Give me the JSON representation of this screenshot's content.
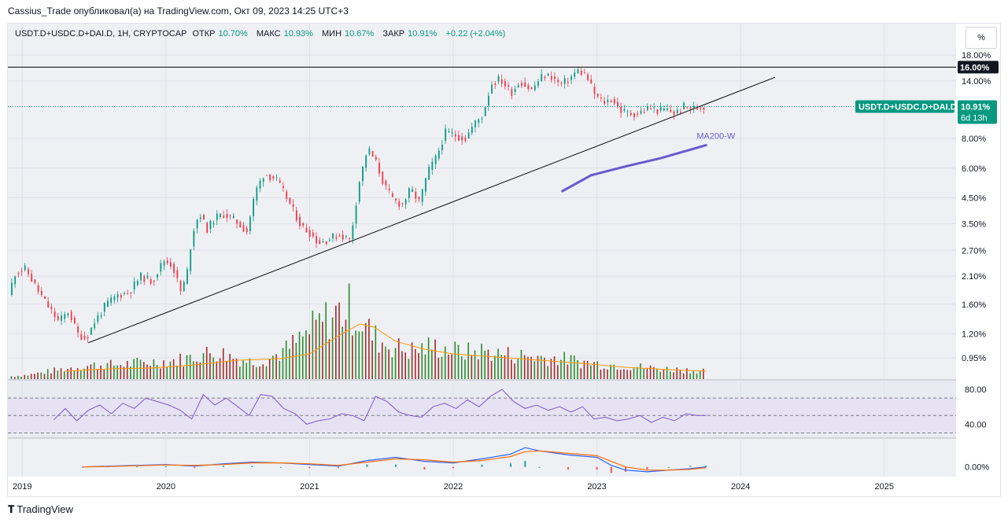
{
  "attribution": "Cassius_Trade опубликовал(а) на TradingView.com, Окт 09, 2023 14:25 UTC+3",
  "header": {
    "symbol": "USDT.D+USDC.D+DAI.D, 1H, CRYPTOCAP",
    "open_label": "ОТКР",
    "open_value": "10.70%",
    "high_label": "МАКС",
    "high_value": "10.93%",
    "low_label": "МИН",
    "low_value": "10.67%",
    "close_label": "ЗАКР",
    "close_value": "10.91%",
    "change": "+0.22 (+2.04%)"
  },
  "scale_button": "%",
  "price_tag": {
    "label": "USDT.D+USDC.D+DAI.D",
    "value": "10.91%",
    "countdown": "6d 13h"
  },
  "level_tag": "16.00%",
  "annotation_ma": "MA200-W",
  "footer_logo": "TradingView",
  "colors": {
    "up": "#089981",
    "down": "#f23645",
    "vol_up": "#2e8b2e",
    "vol_down": "#a52a2a",
    "ma": "#6a5acd",
    "rsi": "#7e57c2",
    "macd": "#2962ff",
    "signal": "#ff6d00",
    "vol_ma": "#ff9800"
  },
  "chart_data": [
    {
      "type": "candlestick",
      "title": "USDT.D+USDC.D+DAI.D, 1H, CRYPTOCAP",
      "y_scale": "log",
      "y_ticks": [
        "18.00%",
        "14.00%",
        "8.00%",
        "6.00%",
        "4.50%",
        "3.50%",
        "2.70%",
        "2.10%",
        "1.60%",
        "1.20%",
        "0.95%"
      ],
      "x_ticks": [
        "2019",
        "2020",
        "2021",
        "2022",
        "2023",
        "2024",
        "2025"
      ],
      "x_range": [
        2018.9,
        2025.5
      ],
      "price_series": [
        [
          2018.92,
          1.75
        ],
        [
          2018.97,
          2.2
        ],
        [
          2019.04,
          2.25
        ],
        [
          2019.12,
          1.85
        ],
        [
          2019.2,
          1.55
        ],
        [
          2019.27,
          1.35
        ],
        [
          2019.34,
          1.5
        ],
        [
          2019.4,
          1.2
        ],
        [
          2019.46,
          1.15
        ],
        [
          2019.52,
          1.35
        ],
        [
          2019.6,
          1.6
        ],
        [
          2019.68,
          1.75
        ],
        [
          2019.76,
          1.8
        ],
        [
          2019.84,
          2.1
        ],
        [
          2019.92,
          2.0
        ],
        [
          2020.0,
          2.45
        ],
        [
          2020.06,
          2.35
        ],
        [
          2020.12,
          1.8
        ],
        [
          2020.16,
          2.1
        ],
        [
          2020.2,
          3.2
        ],
        [
          2020.25,
          3.9
        ],
        [
          2020.3,
          3.3
        ],
        [
          2020.36,
          3.7
        ],
        [
          2020.42,
          3.85
        ],
        [
          2020.5,
          3.6
        ],
        [
          2020.58,
          3.25
        ],
        [
          2020.64,
          4.8
        ],
        [
          2020.7,
          5.7
        ],
        [
          2020.78,
          5.4
        ],
        [
          2020.84,
          4.7
        ],
        [
          2020.9,
          4.0
        ],
        [
          2020.96,
          3.4
        ],
        [
          2021.02,
          3.2
        ],
        [
          2021.08,
          2.9
        ],
        [
          2021.14,
          3.0
        ],
        [
          2021.22,
          3.15
        ],
        [
          2021.3,
          3.0
        ],
        [
          2021.36,
          5.2
        ],
        [
          2021.42,
          7.3
        ],
        [
          2021.48,
          6.3
        ],
        [
          2021.54,
          5.0
        ],
        [
          2021.6,
          4.4
        ],
        [
          2021.66,
          4.2
        ],
        [
          2021.72,
          4.9
        ],
        [
          2021.78,
          4.3
        ],
        [
          2021.84,
          5.8
        ],
        [
          2021.9,
          6.7
        ],
        [
          2021.96,
          8.5
        ],
        [
          2022.02,
          8.3
        ],
        [
          2022.1,
          8.0
        ],
        [
          2022.16,
          9.2
        ],
        [
          2022.22,
          10.0
        ],
        [
          2022.28,
          13.6
        ],
        [
          2022.34,
          14.3
        ],
        [
          2022.42,
          12.5
        ],
        [
          2022.48,
          14.0
        ],
        [
          2022.56,
          12.8
        ],
        [
          2022.64,
          14.8
        ],
        [
          2022.7,
          14.6
        ],
        [
          2022.76,
          13.5
        ],
        [
          2022.82,
          14.2
        ],
        [
          2022.88,
          15.5
        ],
        [
          2022.94,
          14.8
        ],
        [
          2023.0,
          12.3
        ],
        [
          2023.06,
          11.3
        ],
        [
          2023.12,
          11.8
        ],
        [
          2023.18,
          10.5
        ],
        [
          2023.24,
          10.2
        ],
        [
          2023.3,
          10.2
        ],
        [
          2023.38,
          10.8
        ],
        [
          2023.44,
          10.5
        ],
        [
          2023.5,
          10.6
        ],
        [
          2023.56,
          10.2
        ],
        [
          2023.62,
          10.9
        ],
        [
          2023.7,
          10.7
        ],
        [
          2023.76,
          10.91
        ]
      ],
      "horizontal_level": 16.0,
      "last_price": 10.91,
      "trendline": [
        [
          2019.46,
          1.1
        ],
        [
          2024.24,
          14.5
        ]
      ],
      "ma200w": [
        [
          2022.76,
          4.8
        ],
        [
          2022.96,
          5.6
        ],
        [
          2023.2,
          6.1
        ],
        [
          2023.44,
          6.6
        ],
        [
          2023.76,
          7.5
        ]
      ],
      "volume": [
        [
          2018.92,
          4
        ],
        [
          2019.04,
          6
        ],
        [
          2019.16,
          10
        ],
        [
          2019.28,
          14
        ],
        [
          2019.4,
          18
        ],
        [
          2019.52,
          20
        ],
        [
          2019.64,
          20
        ],
        [
          2019.76,
          22
        ],
        [
          2019.88,
          24
        ],
        [
          2020.0,
          25
        ],
        [
          2020.12,
          28
        ],
        [
          2020.24,
          35
        ],
        [
          2020.36,
          38
        ],
        [
          2020.48,
          30
        ],
        [
          2020.6,
          24
        ],
        [
          2020.72,
          30
        ],
        [
          2020.84,
          42
        ],
        [
          2020.96,
          60
        ],
        [
          2021.04,
          75
        ],
        [
          2021.12,
          85
        ],
        [
          2021.2,
          95
        ],
        [
          2021.28,
          100
        ],
        [
          2021.36,
          80
        ],
        [
          2021.44,
          60
        ],
        [
          2021.52,
          50
        ],
        [
          2021.6,
          45
        ],
        [
          2021.68,
          40
        ],
        [
          2021.76,
          42
        ],
        [
          2021.84,
          46
        ],
        [
          2021.92,
          44
        ],
        [
          2022.0,
          40
        ],
        [
          2022.1,
          38
        ],
        [
          2022.2,
          40
        ],
        [
          2022.3,
          36
        ],
        [
          2022.42,
          34
        ],
        [
          2022.54,
          32
        ],
        [
          2022.66,
          30
        ],
        [
          2022.78,
          28
        ],
        [
          2022.9,
          24
        ],
        [
          2023.0,
          22
        ],
        [
          2023.12,
          20
        ],
        [
          2023.24,
          18
        ],
        [
          2023.36,
          16
        ],
        [
          2023.5,
          14
        ],
        [
          2023.62,
          13
        ],
        [
          2023.76,
          12
        ]
      ],
      "volume_ma": [
        [
          2019.3,
          10
        ],
        [
          2019.6,
          13
        ],
        [
          2019.9,
          14
        ],
        [
          2020.2,
          18
        ],
        [
          2020.5,
          24
        ],
        [
          2020.8,
          26
        ],
        [
          2021.0,
          32
        ],
        [
          2021.2,
          55
        ],
        [
          2021.35,
          70
        ],
        [
          2021.45,
          66
        ],
        [
          2021.6,
          48
        ],
        [
          2021.8,
          38
        ],
        [
          2022.0,
          32
        ],
        [
          2022.3,
          28
        ],
        [
          2022.6,
          24
        ],
        [
          2022.9,
          20
        ],
        [
          2023.2,
          15
        ],
        [
          2023.5,
          12
        ],
        [
          2023.76,
          10
        ]
      ]
    },
    {
      "type": "line",
      "title": "RSI",
      "y_ticks": [
        "80.00",
        "40.00"
      ],
      "ylim": [
        25,
        90
      ],
      "bands": [
        70,
        50,
        30
      ],
      "x": [
        2019.22,
        2019.3,
        2019.38,
        2019.46,
        2019.54,
        2019.62,
        2019.7,
        2019.78,
        2019.86,
        2019.94,
        2020.02,
        2020.1,
        2020.18,
        2020.26,
        2020.34,
        2020.42,
        2020.5,
        2020.58,
        2020.66,
        2020.74,
        2020.82,
        2020.9,
        2020.98,
        2021.06,
        2021.14,
        2021.22,
        2021.3,
        2021.38,
        2021.46,
        2021.54,
        2021.62,
        2021.7,
        2021.78,
        2021.86,
        2021.94,
        2022.02,
        2022.1,
        2022.18,
        2022.26,
        2022.34,
        2022.42,
        2022.5,
        2022.58,
        2022.66,
        2022.74,
        2022.82,
        2022.9,
        2022.98,
        2023.06,
        2023.14,
        2023.22,
        2023.3,
        2023.38,
        2023.46,
        2023.54,
        2023.62,
        2023.7,
        2023.76
      ],
      "values": [
        45,
        58,
        44,
        56,
        62,
        52,
        64,
        58,
        70,
        66,
        62,
        56,
        46,
        74,
        62,
        70,
        60,
        50,
        74,
        72,
        58,
        52,
        40,
        44,
        46,
        52,
        50,
        44,
        72,
        66,
        54,
        50,
        48,
        60,
        64,
        58,
        68,
        60,
        72,
        80,
        66,
        58,
        62,
        56,
        60,
        54,
        60,
        46,
        48,
        44,
        46,
        50,
        42,
        48,
        44,
        52,
        50,
        50
      ]
    },
    {
      "type": "line",
      "title": "MACD",
      "y_ticks": [
        "0.00%"
      ],
      "ylim": [
        -1.2,
        3.5
      ],
      "x": [
        2019.42,
        2019.6,
        2019.8,
        2020.0,
        2020.2,
        2020.4,
        2020.6,
        2020.8,
        2021.0,
        2021.2,
        2021.4,
        2021.6,
        2021.8,
        2022.0,
        2022.2,
        2022.4,
        2022.5,
        2022.6,
        2022.8,
        2023.0,
        2023.1,
        2023.2,
        2023.35,
        2023.5,
        2023.65,
        2023.76
      ],
      "series": [
        {
          "name": "",
          "values": [
            0.0,
            0.1,
            0.2,
            0.3,
            0.1,
            0.4,
            0.6,
            0.5,
            0.3,
            0.1,
            0.8,
            1.2,
            0.7,
            0.5,
            1.0,
            1.6,
            2.4,
            2.0,
            1.5,
            1.2,
            0.2,
            -0.4,
            -0.6,
            -0.4,
            -0.2,
            0.0
          ]
        },
        {
          "name": "",
          "values": [
            0.0,
            0.05,
            0.15,
            0.25,
            0.2,
            0.3,
            0.5,
            0.5,
            0.4,
            0.2,
            0.6,
            1.0,
            0.9,
            0.6,
            0.8,
            1.3,
            1.9,
            2.0,
            1.7,
            1.4,
            0.7,
            0.0,
            -0.4,
            -0.4,
            -0.3,
            -0.1
          ]
        }
      ]
    }
  ]
}
